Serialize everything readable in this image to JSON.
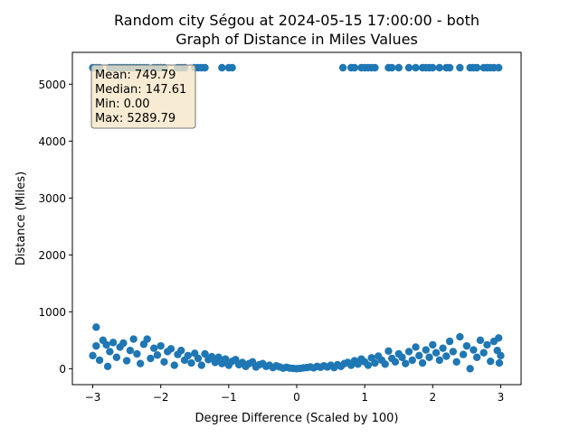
{
  "chart_data": {
    "type": "scatter",
    "title_line1": "Random city Ségou at 2024-05-15 17:00:00  - both",
    "title_line2": "Graph of Distance in Miles Values",
    "xlabel": "Degree Difference (Scaled by 100)",
    "ylabel": "Distance (Miles)",
    "xlim": [
      -3.3,
      3.3
    ],
    "ylim": [
      -280,
      5560
    ],
    "xticks": [
      -3,
      -2,
      -1,
      0,
      1,
      2,
      3
    ],
    "yticks": [
      0,
      1000,
      2000,
      3000,
      4000,
      5000
    ],
    "grid": false,
    "marker_color": "#1f77b4",
    "stats": {
      "mean": "Mean: 749.79",
      "median": "Median: 147.61",
      "min": "Min: 0.00",
      "max": "Max: 5289.79"
    },
    "high_points_x": [
      -3.0,
      -2.95,
      -2.9,
      -2.75,
      -2.7,
      -2.65,
      -2.6,
      -2.55,
      -2.5,
      -2.45,
      -2.4,
      -2.35,
      -2.3,
      -2.25,
      -2.2,
      -2.1,
      -2.05,
      -2.0,
      -1.95,
      -1.75,
      -1.7,
      -1.65,
      -1.5,
      -1.45,
      -1.4,
      -1.35,
      -1.1,
      -1.0,
      -0.95,
      0.68,
      0.8,
      0.85,
      0.95,
      1.0,
      1.05,
      1.1,
      1.15,
      1.35,
      1.4,
      1.5,
      1.65,
      1.75,
      1.85,
      1.9,
      1.95,
      2.0,
      2.1,
      2.2,
      2.25,
      2.4,
      2.55,
      2.6,
      2.65,
      2.75,
      2.8,
      2.85,
      2.9,
      2.97
    ],
    "high_points_y": 5290,
    "low_points": [
      [
        -3.0,
        230
      ],
      [
        -2.95,
        730
      ],
      [
        -2.95,
        400
      ],
      [
        -2.9,
        150
      ],
      [
        -2.85,
        500
      ],
      [
        -2.8,
        420
      ],
      [
        -2.78,
        40
      ],
      [
        -2.75,
        300
      ],
      [
        -2.7,
        460
      ],
      [
        -2.65,
        200
      ],
      [
        -2.6,
        380
      ],
      [
        -2.55,
        450
      ],
      [
        -2.5,
        140
      ],
      [
        -2.45,
        320
      ],
      [
        -2.4,
        520
      ],
      [
        -2.35,
        260
      ],
      [
        -2.3,
        90
      ],
      [
        -2.25,
        430
      ],
      [
        -2.2,
        520
      ],
      [
        -2.15,
        180
      ],
      [
        -2.1,
        360
      ],
      [
        -2.05,
        240
      ],
      [
        -2.0,
        400
      ],
      [
        -1.95,
        120
      ],
      [
        -1.9,
        300
      ],
      [
        -1.85,
        350
      ],
      [
        -1.8,
        60
      ],
      [
        -1.75,
        250
      ],
      [
        -1.7,
        320
      ],
      [
        -1.65,
        150
      ],
      [
        -1.6,
        230
      ],
      [
        -1.55,
        100
      ],
      [
        -1.5,
        270
      ],
      [
        -1.45,
        180
      ],
      [
        -1.4,
        60
      ],
      [
        -1.35,
        260
      ],
      [
        -1.3,
        160
      ],
      [
        -1.25,
        210
      ],
      [
        -1.2,
        110
      ],
      [
        -1.15,
        200
      ],
      [
        -1.1,
        90
      ],
      [
        -1.05,
        170
      ],
      [
        -1.0,
        60
      ],
      [
        -0.95,
        130
      ],
      [
        -0.9,
        160
      ],
      [
        -0.85,
        70
      ],
      [
        -0.8,
        110
      ],
      [
        -0.75,
        40
      ],
      [
        -0.7,
        90
      ],
      [
        -0.65,
        120
      ],
      [
        -0.6,
        30
      ],
      [
        -0.55,
        70
      ],
      [
        -0.5,
        90
      ],
      [
        -0.45,
        40
      ],
      [
        -0.4,
        60
      ],
      [
        -0.35,
        20
      ],
      [
        -0.3,
        50
      ],
      [
        -0.25,
        30
      ],
      [
        -0.2,
        10
      ],
      [
        -0.15,
        25
      ],
      [
        -0.1,
        10
      ],
      [
        -0.05,
        5
      ],
      [
        0.0,
        0
      ],
      [
        0.05,
        5
      ],
      [
        0.1,
        15
      ],
      [
        0.15,
        20
      ],
      [
        0.2,
        30
      ],
      [
        0.25,
        15
      ],
      [
        0.3,
        40
      ],
      [
        0.35,
        25
      ],
      [
        0.4,
        50
      ],
      [
        0.45,
        30
      ],
      [
        0.5,
        60
      ],
      [
        0.55,
        20
      ],
      [
        0.6,
        70
      ],
      [
        0.65,
        40
      ],
      [
        0.7,
        90
      ],
      [
        0.75,
        110
      ],
      [
        0.8,
        60
      ],
      [
        0.85,
        140
      ],
      [
        0.9,
        80
      ],
      [
        0.95,
        170
      ],
      [
        1.0,
        120
      ],
      [
        1.05,
        60
      ],
      [
        1.1,
        190
      ],
      [
        1.15,
        100
      ],
      [
        1.2,
        220
      ],
      [
        1.25,
        150
      ],
      [
        1.3,
        80
      ],
      [
        1.35,
        310
      ],
      [
        1.4,
        180
      ],
      [
        1.45,
        120
      ],
      [
        1.5,
        260
      ],
      [
        1.55,
        200
      ],
      [
        1.6,
        90
      ],
      [
        1.65,
        300
      ],
      [
        1.7,
        150
      ],
      [
        1.75,
        380
      ],
      [
        1.8,
        230
      ],
      [
        1.85,
        100
      ],
      [
        1.9,
        330
      ],
      [
        1.95,
        200
      ],
      [
        2.0,
        420
      ],
      [
        2.05,
        280
      ],
      [
        2.1,
        150
      ],
      [
        2.15,
        360
      ],
      [
        2.2,
        220
      ],
      [
        2.25,
        480
      ],
      [
        2.3,
        300
      ],
      [
        2.35,
        120
      ],
      [
        2.4,
        560
      ],
      [
        2.45,
        250
      ],
      [
        2.5,
        400
      ],
      [
        2.55,
        0
      ],
      [
        2.6,
        330
      ],
      [
        2.65,
        200
      ],
      [
        2.7,
        500
      ],
      [
        2.75,
        280
      ],
      [
        2.8,
        420
      ],
      [
        2.85,
        130
      ],
      [
        2.9,
        480
      ],
      [
        2.95,
        320
      ],
      [
        2.97,
        540
      ],
      [
        2.98,
        100
      ],
      [
        3.0,
        230
      ]
    ]
  }
}
